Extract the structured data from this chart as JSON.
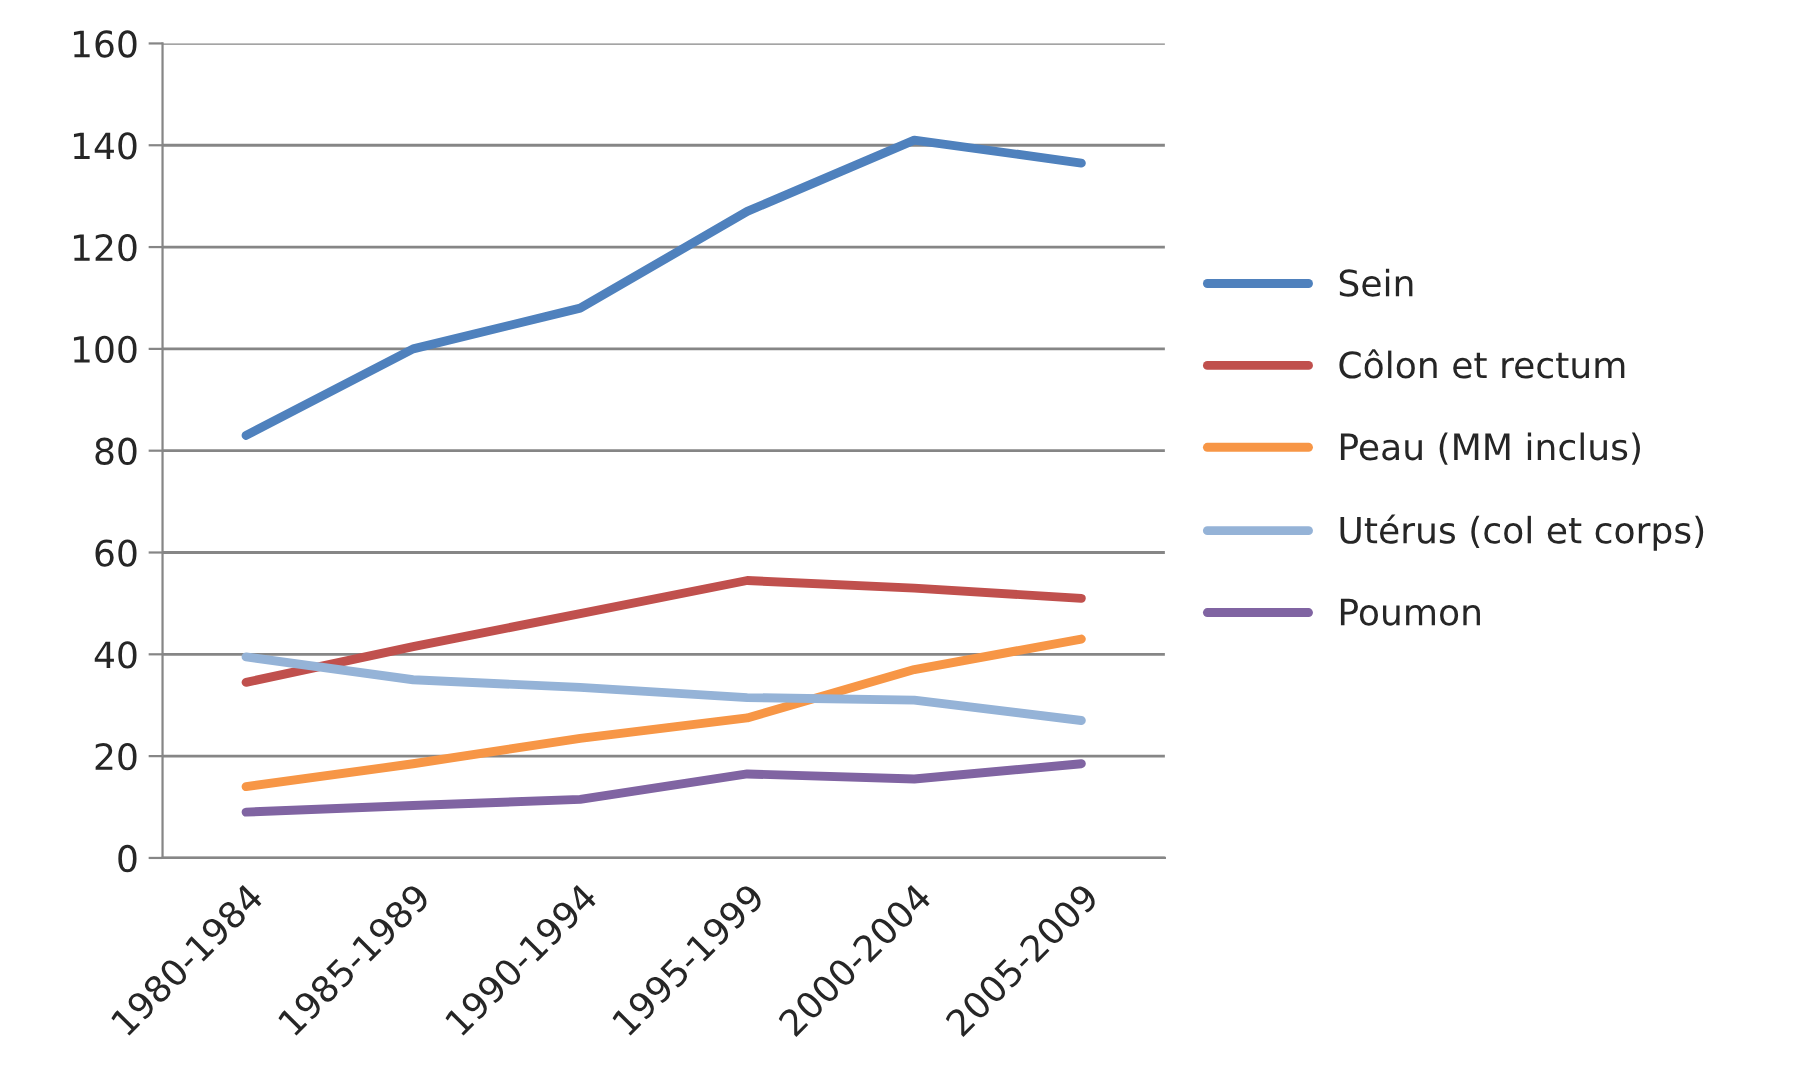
{
  "chart_data": {
    "type": "line",
    "categories": [
      "1980-1984",
      "1985-1989",
      "1990-1994",
      "1995-1999",
      "2000-2004",
      "2005-2009"
    ],
    "series": [
      {
        "name": "Sein",
        "color": "#4f81bd",
        "values": [
          83,
          100,
          108,
          127,
          141,
          136.5
        ]
      },
      {
        "name": "Côlon et rectum",
        "color": "#c0504d",
        "values": [
          34.5,
          41.5,
          48,
          54.5,
          53,
          51
        ]
      },
      {
        "name": "Peau (MM inclus)",
        "color": "#f79646",
        "values": [
          14,
          18.5,
          23.5,
          27.5,
          37,
          43
        ]
      },
      {
        "name": "Utérus (col et corps)",
        "color": "#95b3d7",
        "values": [
          39.5,
          35,
          33.5,
          31.5,
          31,
          27
        ]
      },
      {
        "name": "Poumon",
        "color": "#8064a2",
        "values": [
          9,
          10.3,
          11.5,
          16.5,
          15.5,
          18.5
        ]
      }
    ],
    "ylim": [
      0,
      160
    ],
    "yticks": [
      0,
      20,
      40,
      60,
      80,
      100,
      120,
      140,
      160
    ],
    "grid": "y",
    "legend": "right",
    "marker": "none",
    "line_style": "solid"
  }
}
